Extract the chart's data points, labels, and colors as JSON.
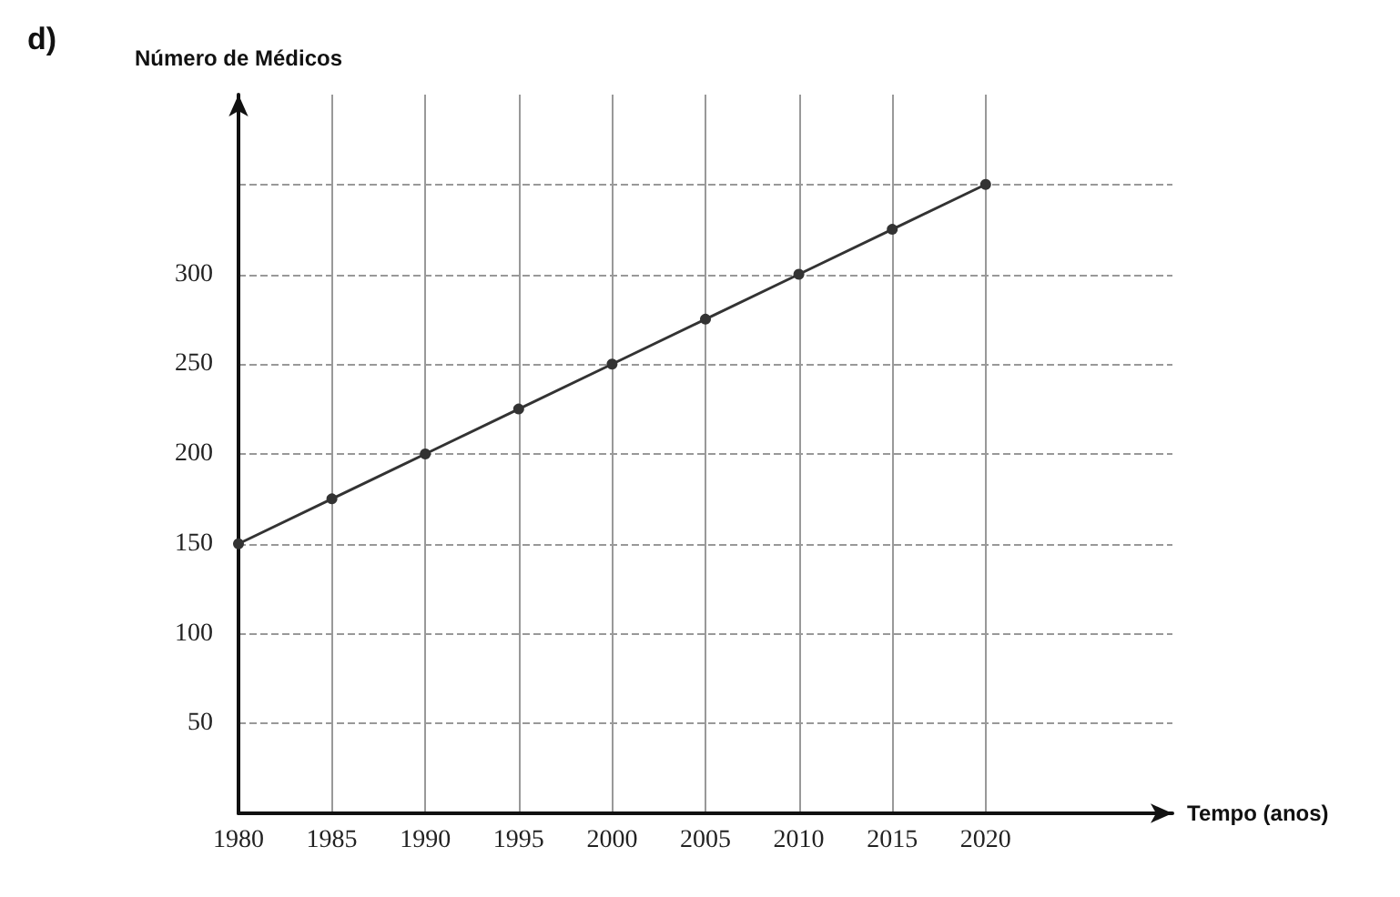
{
  "chart_data": {
    "type": "line",
    "title": "d)",
    "xlabel": "Tempo (anos)",
    "ylabel": "Número de Médicos",
    "x": [
      1980,
      1985,
      1990,
      1995,
      2000,
      2005,
      2010,
      2015,
      2020
    ],
    "series": [
      {
        "color": "#333333",
        "values": [
          150,
          175,
          200,
          225,
          250,
          275,
          300,
          325,
          350
        ]
      }
    ],
    "xlim": [
      1980,
      2030
    ],
    "xticks": [
      1980,
      1985,
      1990,
      1995,
      2000,
      2005,
      2010,
      2015,
      2020
    ],
    "ylim": [
      0,
      400
    ],
    "yticks": [
      50,
      100,
      150,
      200,
      250,
      300,
      {
        "value": 350,
        "label": null
      }
    ],
    "grid": true,
    "marker": "circle",
    "line_style": "solid"
  }
}
